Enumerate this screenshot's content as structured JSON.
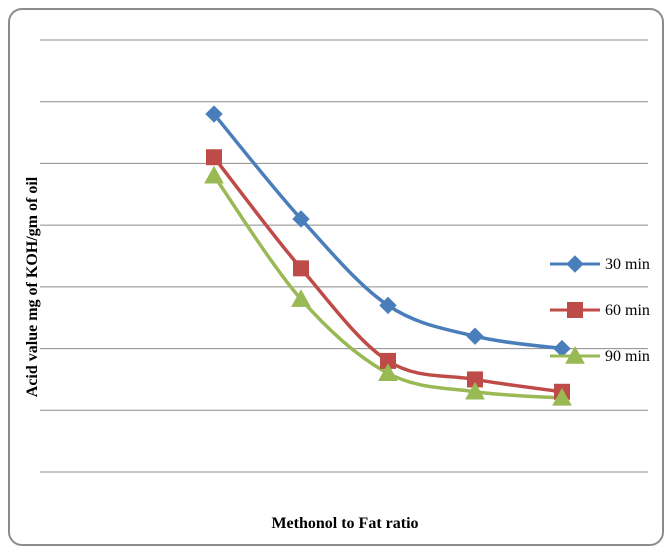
{
  "chart_data": {
    "type": "line",
    "title": "",
    "xlabel": "Methonol to Fat ratio",
    "ylabel": "Acid value mg of KOH/gm of oil",
    "categories": [
      "",
      "",
      "",
      "",
      ""
    ],
    "ylim": [
      0,
      7
    ],
    "grid": true,
    "legend_position": "right",
    "series": [
      {
        "name": "30 min",
        "color": "#4a7ebb",
        "marker": "diamond",
        "values": [
          5.8,
          4.1,
          2.7,
          2.2,
          2.0
        ]
      },
      {
        "name": "60 min",
        "color": "#be4b48",
        "marker": "square",
        "values": [
          5.1,
          3.3,
          1.8,
          1.5,
          1.3
        ]
      },
      {
        "name": "90 min",
        "color": "#98b954",
        "marker": "triangle",
        "values": [
          4.8,
          2.8,
          1.6,
          1.3,
          1.2
        ]
      }
    ]
  }
}
